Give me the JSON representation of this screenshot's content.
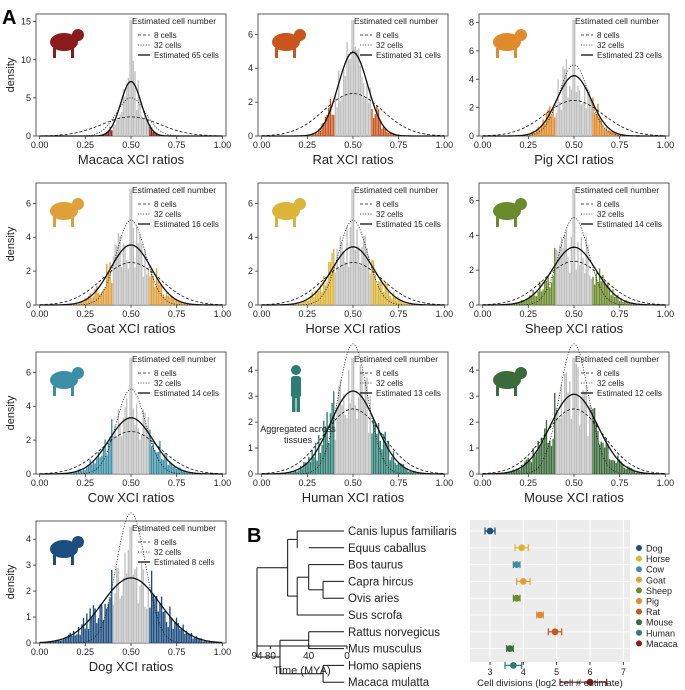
{
  "panel_labels": {
    "a": "A",
    "b": "B"
  },
  "legend": {
    "title": "Estimated cell number",
    "lines": [
      "8 cells",
      "32 cells"
    ],
    "estimated_prefix": "Estimated",
    "estimated_suffix": "cells"
  },
  "common": {
    "ylabel": "density",
    "x_ticks": [
      "0.00",
      "0.25",
      "0.50",
      "0.75",
      "1.00"
    ],
    "x_tick_values": [
      0,
      0.25,
      0.5,
      0.75,
      1
    ]
  },
  "colors": {
    "gray": "#c0c0c0",
    "Macaca": "#8b1a1a",
    "Rat": "#c9541c",
    "Pig": "#e08a2c",
    "Goat": "#dfa03a",
    "Horse": "#dbb53a",
    "Sheep": "#6a8a2c",
    "Cow": "#3b8ea5",
    "Human": "#2e7d72",
    "Mouse": "#3a6b3a",
    "Dog": "#1c4e80"
  },
  "chart_data": [
    {
      "type": "histogram",
      "species": "Macaca",
      "title": "Macaca XCI ratios",
      "estimated_cells": 65,
      "y_ticks": [
        "0",
        "5",
        "10",
        "15"
      ],
      "y_tick_values": [
        0,
        5,
        10,
        15
      ],
      "ylim": [
        0,
        16
      ],
      "annotation": ""
    },
    {
      "type": "histogram",
      "species": "Rat",
      "title": "Rat XCI ratios",
      "estimated_cells": 31,
      "y_ticks": [
        "0",
        "2",
        "4",
        "6"
      ],
      "y_tick_values": [
        0,
        2,
        4,
        6
      ],
      "ylim": [
        0,
        7.2
      ],
      "annotation": ""
    },
    {
      "type": "histogram",
      "species": "Pig",
      "title": "Pig XCI ratios",
      "estimated_cells": 23,
      "y_ticks": [
        "0",
        "2",
        "4",
        "6",
        "8"
      ],
      "y_tick_values": [
        0,
        2,
        4,
        6,
        8
      ],
      "ylim": [
        0,
        8.6
      ],
      "annotation": ""
    },
    {
      "type": "histogram",
      "species": "Goat",
      "title": "Goat XCI ratios",
      "estimated_cells": 16,
      "y_ticks": [
        "0",
        "2",
        "4",
        "6"
      ],
      "y_tick_values": [
        0,
        2,
        4,
        6
      ],
      "ylim": [
        0,
        7.2
      ],
      "annotation": ""
    },
    {
      "type": "histogram",
      "species": "Horse",
      "title": "Horse XCI ratios",
      "estimated_cells": 15,
      "y_ticks": [
        "0",
        "2",
        "4",
        "6"
      ],
      "y_tick_values": [
        0,
        2,
        4,
        6
      ],
      "ylim": [
        0,
        7.2
      ],
      "annotation": ""
    },
    {
      "type": "histogram",
      "species": "Sheep",
      "title": "Sheep XCI ratios",
      "estimated_cells": 14,
      "y_ticks": [
        "0",
        "2",
        "4",
        "6"
      ],
      "y_tick_values": [
        0,
        2,
        4,
        6
      ],
      "ylim": [
        0,
        7.0
      ],
      "annotation": ""
    },
    {
      "type": "histogram",
      "species": "Cow",
      "title": "Cow XCI ratios",
      "estimated_cells": 14,
      "y_ticks": [
        "0",
        "2",
        "4",
        "6"
      ],
      "y_tick_values": [
        0,
        2,
        4,
        6
      ],
      "ylim": [
        0,
        7.2
      ],
      "annotation": ""
    },
    {
      "type": "histogram",
      "species": "Human",
      "title": "Human XCI ratios",
      "estimated_cells": 13,
      "y_ticks": [
        "0",
        "1",
        "2",
        "3",
        "4"
      ],
      "y_tick_values": [
        0,
        1,
        2,
        3,
        4
      ],
      "ylim": [
        0,
        4.7
      ],
      "annotation": "Aggregated across tissues"
    },
    {
      "type": "histogram",
      "species": "Mouse",
      "title": "Mouse XCI ratios",
      "estimated_cells": 12,
      "y_ticks": [
        "0",
        "1",
        "2",
        "3",
        "4"
      ],
      "y_tick_values": [
        0,
        1,
        2,
        3,
        4
      ],
      "ylim": [
        0,
        4.7
      ],
      "annotation": ""
    },
    {
      "type": "histogram",
      "species": "Dog",
      "title": "Dog XCI ratios",
      "estimated_cells": 8,
      "y_ticks": [
        "0",
        "1",
        "2",
        "3",
        "4"
      ],
      "y_tick_values": [
        0,
        1,
        2,
        3,
        4
      ],
      "ylim": [
        0,
        4.7
      ],
      "annotation": ""
    },
    {
      "type": "scatter_errorbar",
      "xlabel": "Cell divisions (log2 cell # estimate)",
      "x_ticks": [
        "3",
        "4",
        "5",
        "6",
        "7"
      ],
      "x_tick_values": [
        3,
        4,
        5,
        6,
        7
      ],
      "xlim": [
        2.4,
        7.2
      ],
      "rows": [
        {
          "latin": "Canis lupus familiaris",
          "name": "Dog",
          "value": 3.0,
          "lo": 2.85,
          "hi": 3.15
        },
        {
          "latin": "Equus caballus",
          "name": "Horse",
          "value": 3.95,
          "lo": 3.75,
          "hi": 4.15
        },
        {
          "latin": "Bos taurus",
          "name": "Cow",
          "value": 3.8,
          "lo": 3.7,
          "hi": 3.9
        },
        {
          "latin": "Capra hircus",
          "name": "Goat",
          "value": 4.0,
          "lo": 3.8,
          "hi": 4.2
        },
        {
          "latin": "Ovis aries",
          "name": "Sheep",
          "value": 3.8,
          "lo": 3.7,
          "hi": 3.9
        },
        {
          "latin": "Sus scrofa",
          "name": "Pig",
          "value": 4.5,
          "lo": 4.4,
          "hi": 4.6
        },
        {
          "latin": "Rattus norvegicus",
          "name": "Rat",
          "value": 4.95,
          "lo": 4.75,
          "hi": 5.15
        },
        {
          "latin": "Mus musculus",
          "name": "Mouse",
          "value": 3.6,
          "lo": 3.5,
          "hi": 3.7
        },
        {
          "latin": "Homo sapiens",
          "name": "Human",
          "value": 3.7,
          "lo": 3.45,
          "hi": 3.95
        },
        {
          "latin": "Macaca mulatta",
          "name": "Macaca",
          "value": 6.0,
          "lo": 5.1,
          "hi": 6.5
        }
      ],
      "legend_order": [
        "Dog",
        "Horse",
        "Cow",
        "Goat",
        "Sheep",
        "Pig",
        "Rat",
        "Mouse",
        "Human",
        "Macaca"
      ],
      "tree_axis_label": "Time (MYA)",
      "tree_ticks": [
        "94",
        "80",
        "40",
        "0"
      ],
      "tree_tick_values": [
        94,
        80,
        40,
        0
      ]
    }
  ]
}
